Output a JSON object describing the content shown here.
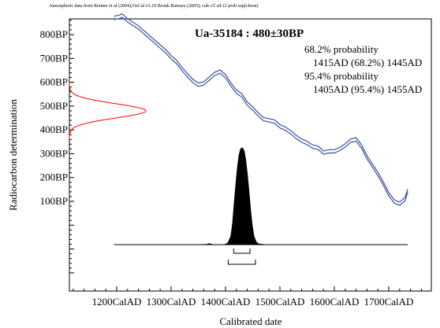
{
  "chart_data": {
    "type": "line",
    "credit": "Atmospheric data from Reimer et al (2004);OxCal v3.10 Bronk Ramsey (2005); cub r:5 sd:12 prob usp[chron]",
    "title": "Ua-35184 : 480±30BP",
    "xlabel": "Calibrated date",
    "ylabel": "Radiocarbon determination",
    "xlim": [
      1100,
      1800
    ],
    "ylim": [
      -200,
      900
    ],
    "x_ticks": [
      "1200CalAD",
      "1300CalAD",
      "1400CalAD",
      "1500CalAD",
      "1600CalAD",
      "1700CalAD"
    ],
    "x_tick_values": [
      1200,
      1300,
      1400,
      1500,
      1600,
      1700
    ],
    "y_ticks": [
      "100BP",
      "200BP",
      "300BP",
      "400BP",
      "500BP",
      "600BP",
      "700BP",
      "800BP"
    ],
    "y_tick_values": [
      100,
      200,
      300,
      400,
      500,
      600,
      700,
      800
    ],
    "probability": {
      "p68_label": "68.2% probability",
      "p68_range": "1415AD (68.2%) 1445AD",
      "p68_from": 1415,
      "p68_to": 1445,
      "p95_label": "95.4% probability",
      "p95_range": "1405AD (95.4%) 1455AD",
      "p95_from": 1405,
      "p95_to": 1455
    },
    "radiocarbon_mean": 480,
    "radiocarbon_sd": 30,
    "calibration_curve": {
      "x": [
        1195,
        1205,
        1210,
        1220,
        1230,
        1240,
        1250,
        1260,
        1270,
        1280,
        1290,
        1300,
        1310,
        1320,
        1330,
        1340,
        1350,
        1360,
        1370,
        1380,
        1390,
        1400,
        1410,
        1420,
        1430,
        1440,
        1450,
        1460,
        1470,
        1480,
        1490,
        1500,
        1510,
        1520,
        1530,
        1540,
        1550,
        1560,
        1570,
        1580,
        1590,
        1600,
        1610,
        1620,
        1630,
        1640,
        1650,
        1660,
        1670,
        1680,
        1690,
        1700,
        1710,
        1720,
        1730,
        1735
      ],
      "y": [
        870,
        875,
        880,
        860,
        845,
        830,
        810,
        790,
        770,
        750,
        730,
        705,
        685,
        655,
        630,
        605,
        590,
        595,
        615,
        635,
        645,
        625,
        590,
        560,
        545,
        510,
        490,
        465,
        445,
        440,
        435,
        415,
        405,
        390,
        370,
        355,
        345,
        330,
        325,
        305,
        310,
        310,
        320,
        335,
        355,
        360,
        330,
        285,
        250,
        215,
        175,
        130,
        100,
        90,
        110,
        145
      ],
      "halfwidth": 7
    },
    "calibrated_distribution": {
      "x": [
        1195,
        1300,
        1350,
        1365,
        1370,
        1375,
        1380,
        1395,
        1400,
        1405,
        1410,
        1413,
        1416,
        1419,
        1422,
        1425,
        1428,
        1431,
        1434,
        1437,
        1440,
        1443,
        1446,
        1449,
        1452,
        1456,
        1460,
        1470,
        1500,
        1600,
        1735
      ],
      "y": [
        0,
        0,
        0,
        0.002,
        0.01,
        0.002,
        0,
        0,
        0.003,
        0.02,
        0.09,
        0.22,
        0.42,
        0.62,
        0.8,
        0.93,
        0.99,
        1.0,
        0.97,
        0.88,
        0.73,
        0.55,
        0.36,
        0.2,
        0.09,
        0.03,
        0.008,
        0.001,
        0,
        0,
        0
      ]
    }
  }
}
